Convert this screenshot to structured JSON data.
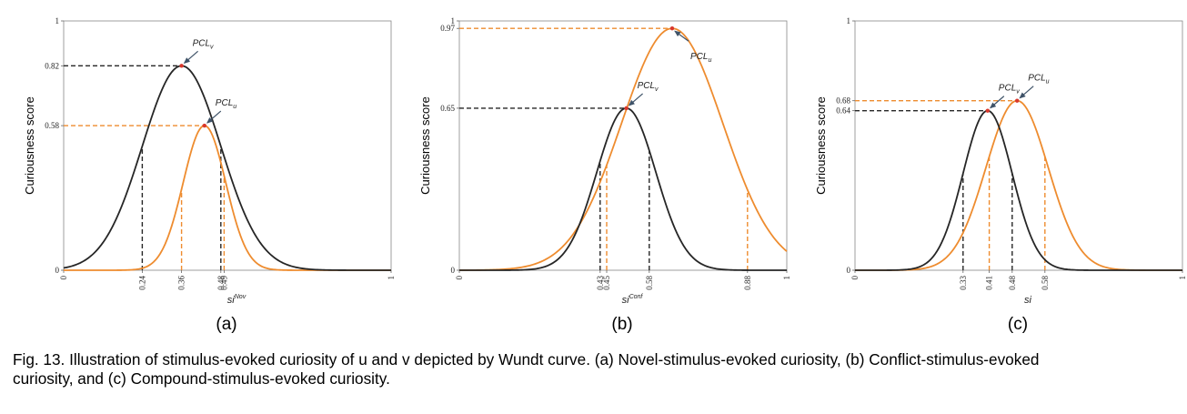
{
  "colors": {
    "v_curve": "#262626",
    "u_curve": "#ee8c2f",
    "peak_dot": "#d9382c",
    "arrow": "#3f5368"
  },
  "chart_data": [
    {
      "type": "line",
      "panel_label": "(a)",
      "ylabel": "Curiousness score",
      "xlabel_base": "si",
      "xlabel_sup": "Nov",
      "xlim": [
        0,
        1
      ],
      "ylim": [
        0,
        1
      ],
      "ytick_labels": [
        "0",
        "0.58",
        "0.82",
        "1"
      ],
      "ytick_values": [
        0,
        0.58,
        0.82,
        1
      ],
      "xtick_labels": [
        "0",
        "0.24",
        "0.36",
        "0.48",
        "0.49",
        "1"
      ],
      "xtick_values": [
        0,
        0.24,
        0.36,
        0.48,
        0.49,
        1
      ],
      "series": [
        {
          "key": "v",
          "peak_label": "PCL",
          "peak_sub": "v",
          "mu": 0.36,
          "sigma": 0.12,
          "peak": 0.82
        },
        {
          "key": "u",
          "peak_label": "PCL",
          "peak_sub": "u",
          "mu": 0.43,
          "sigma": 0.065,
          "peak": 0.58
        }
      ],
      "vlines": [
        {
          "series": "v",
          "x": 0.24
        },
        {
          "series": "v",
          "x": 0.48
        },
        {
          "series": "u",
          "x": 0.36
        },
        {
          "series": "u",
          "x": 0.49
        }
      ]
    },
    {
      "type": "line",
      "panel_label": "(b)",
      "ylabel": "Curiousness score",
      "xlabel_base": "si",
      "xlabel_sup": "Conf",
      "xlim": [
        0,
        1
      ],
      "ylim": [
        0,
        1
      ],
      "ytick_labels": [
        "0",
        "0.65",
        "0.97",
        "1"
      ],
      "ytick_values": [
        0,
        0.65,
        0.97,
        1
      ],
      "xtick_labels": [
        "0",
        "0.43",
        "0.45",
        "0.58",
        "0.88",
        "1"
      ],
      "xtick_values": [
        0,
        0.43,
        0.45,
        0.58,
        0.88,
        1
      ],
      "series": [
        {
          "key": "v",
          "peak_label": "PCL",
          "peak_sub": "v",
          "mu": 0.51,
          "sigma": 0.09,
          "peak": 0.65
        },
        {
          "key": "u",
          "peak_label": "PCL",
          "peak_sub": "u",
          "mu": 0.65,
          "sigma": 0.155,
          "peak": 0.97
        }
      ],
      "vlines": [
        {
          "series": "v",
          "x": 0.43
        },
        {
          "series": "v",
          "x": 0.58
        },
        {
          "series": "u",
          "x": 0.45
        },
        {
          "series": "u",
          "x": 0.88
        }
      ]
    },
    {
      "type": "line",
      "panel_label": "(c)",
      "ylabel": "Curiousness score",
      "xlabel_base": "si",
      "xlabel_sup": "",
      "xlim": [
        0,
        1
      ],
      "ylim": [
        0,
        1
      ],
      "ytick_labels": [
        "0",
        "0.64",
        "0.68",
        "1"
      ],
      "ytick_values": [
        0,
        0.64,
        0.68,
        1
      ],
      "xtick_labels": [
        "0",
        "0.33",
        "0.41",
        "0.48",
        "0.58",
        "1"
      ],
      "xtick_values": [
        0,
        0.33,
        0.41,
        0.48,
        0.58,
        1
      ],
      "series": [
        {
          "key": "v",
          "peak_label": "PCL",
          "peak_sub": "v",
          "mu": 0.405,
          "sigma": 0.075,
          "peak": 0.64
        },
        {
          "key": "u",
          "peak_label": "PCL",
          "peak_sub": "u",
          "mu": 0.495,
          "sigma": 0.095,
          "peak": 0.68
        }
      ],
      "vlines": [
        {
          "series": "v",
          "x": 0.33
        },
        {
          "series": "v",
          "x": 0.48
        },
        {
          "series": "u",
          "x": 0.41
        },
        {
          "series": "u",
          "x": 0.58
        }
      ]
    }
  ],
  "caption": {
    "line1": "Fig. 13. Illustration of stimulus-evoked curiosity of u and v depicted by Wundt curve. (a) Novel-stimulus-evoked curiosity, (b) Conflict-stimulus-evoked",
    "line2": "curiosity, and (c) Compound-stimulus-evoked curiosity."
  }
}
